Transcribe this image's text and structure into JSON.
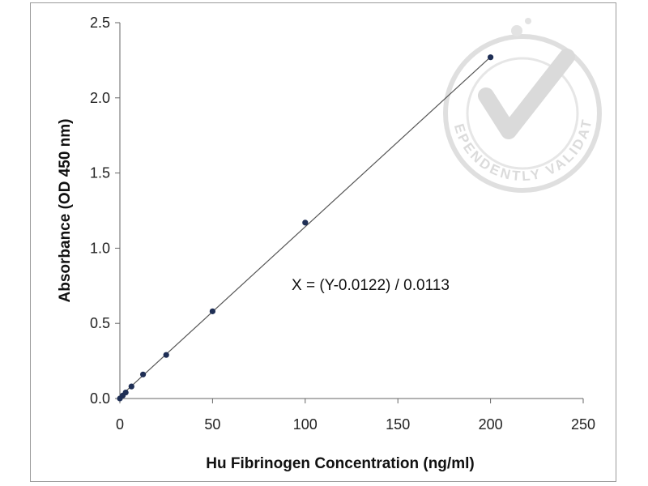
{
  "chart_data": {
    "type": "scatter",
    "xlabel": "Hu Fibrinogen Concentration (ng/ml)",
    "ylabel": "Absorbance (OD 450 nm)",
    "xlim": [
      0,
      250
    ],
    "ylim": [
      0,
      2.5
    ],
    "x_ticks": [
      "0",
      "50",
      "100",
      "150",
      "200",
      "250"
    ],
    "y_ticks": [
      "0.0",
      "0.5",
      "1.0",
      "1.5",
      "2.0",
      "2.5"
    ],
    "grid": false,
    "legend": "none",
    "series": [
      {
        "points": [
          {
            "x": 0,
            "y": 0.0
          },
          {
            "x": 1.56,
            "y": 0.02
          },
          {
            "x": 3.13,
            "y": 0.04
          },
          {
            "x": 6.25,
            "y": 0.08
          },
          {
            "x": 12.5,
            "y": 0.16
          },
          {
            "x": 25,
            "y": 0.29
          },
          {
            "x": 50,
            "y": 0.58
          },
          {
            "x": 100,
            "y": 1.17
          },
          {
            "x": 200,
            "y": 2.27
          }
        ],
        "color": "#1f2f55"
      }
    ],
    "fit_line": {
      "slope": 0.0113,
      "intercept": 0.0122,
      "x_range": [
        0,
        200
      ],
      "color": "#555555"
    },
    "annotations": [
      "X = (Y-0.0122) / 0.0113"
    ]
  },
  "watermark": {
    "text": "INDEPENDENTLY VALIDATED",
    "icon": "checkmark-seal-icon",
    "color": "#d8d8d8"
  }
}
